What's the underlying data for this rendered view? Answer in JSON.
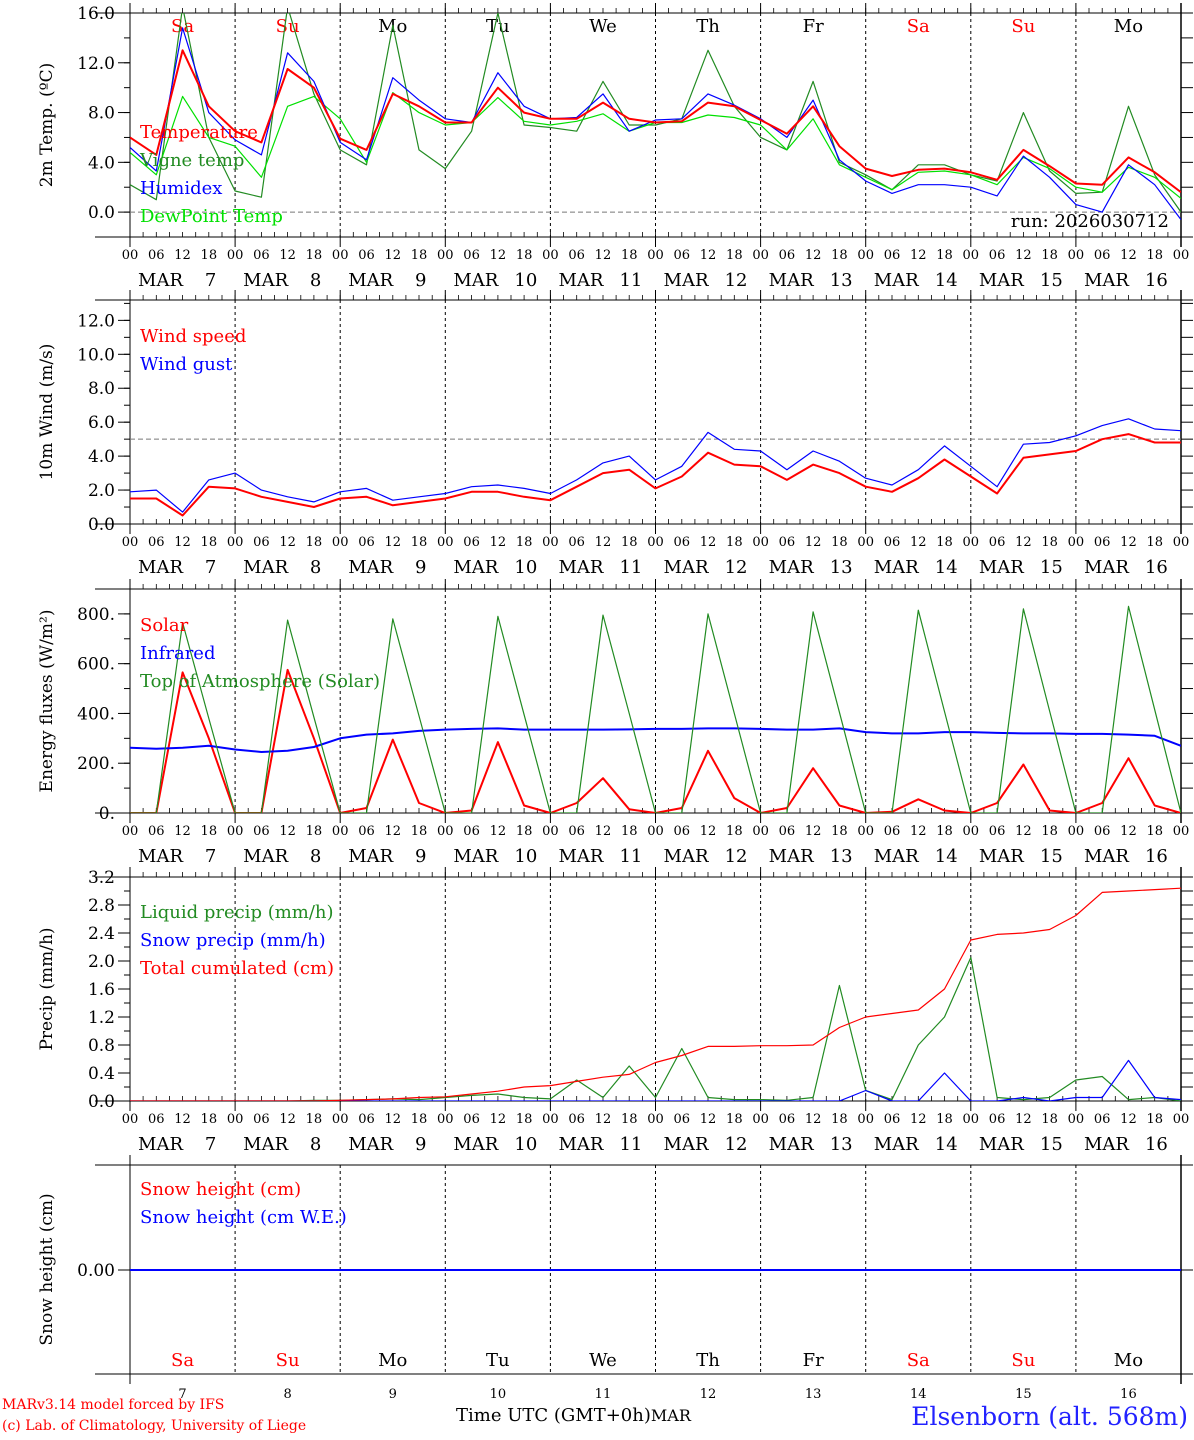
{
  "colors": {
    "red": "#ff0000",
    "green": "#228b22",
    "blue": "#0000ff",
    "lightgreen": "#00e000",
    "black": "#000000",
    "weekend": "#ff0000"
  },
  "x_axis": {
    "hour_ticks": [
      "00",
      "06",
      "12",
      "18"
    ],
    "final_tick": "00",
    "month": "MAR",
    "days": [
      "7",
      "8",
      "9",
      "10",
      "11",
      "12",
      "13",
      "14",
      "15",
      "16"
    ],
    "weekdays": [
      "Sa",
      "Su",
      "Mo",
      "Tu",
      "We",
      "Th",
      "Fr",
      "Sa",
      "Su",
      "Mo"
    ],
    "weekend_flags": [
      true,
      true,
      false,
      false,
      false,
      false,
      false,
      true,
      true,
      false
    ],
    "title": "Time UTC (GMT+0h)",
    "title_suffix": "MAR"
  },
  "footer": {
    "credit_line1": "MARv3.14 model forced by IFS",
    "credit_line2": "(c) Lab. of Climatology, University of Liege",
    "station": "Elsenborn (alt. 568m)"
  },
  "chart_data": [
    {
      "type": "line",
      "title": "",
      "ylabel": "2m Temp. (ºC)",
      "xlabel": "",
      "ylim": [
        -2.0,
        16.0
      ],
      "yticks": [
        "16.0",
        "12.0",
        "8.0",
        "4.0",
        "0.0"
      ],
      "ytick_values": [
        16,
        12,
        8,
        4,
        0
      ],
      "reference_line": 0.0,
      "annotation": "run: 2026030712",
      "x_hours_step": 6,
      "series": [
        {
          "name": "Temperature",
          "color": "#ff0000",
          "values": [
            6.0,
            4.6,
            13.0,
            8.5,
            6.5,
            5.6,
            11.5,
            10.0,
            5.9,
            5.0,
            9.5,
            8.5,
            7.2,
            7.2,
            10.0,
            8.0,
            7.5,
            7.5,
            8.8,
            7.5,
            7.2,
            7.3,
            8.8,
            8.5,
            7.4,
            6.3,
            8.5,
            5.3,
            3.5,
            2.9,
            3.4,
            3.5,
            3.2,
            2.6,
            5.0,
            3.7,
            2.3,
            2.2,
            4.4,
            3.2,
            1.6
          ]
        },
        {
          "name": "Vigne temp",
          "color": "#228b22",
          "values": [
            2.2,
            1.0,
            16.5,
            6.0,
            1.7,
            1.2,
            16.5,
            9.5,
            5.0,
            3.8,
            15.0,
            5.0,
            3.5,
            6.5,
            16.0,
            7.0,
            6.8,
            6.5,
            10.5,
            7.0,
            7.0,
            7.5,
            13.0,
            8.5,
            6.0,
            5.0,
            10.5,
            4.0,
            3.0,
            1.8,
            3.8,
            3.8,
            3.0,
            2.5,
            8.0,
            3.3,
            1.5,
            1.6,
            8.5,
            3.0,
            0.0
          ]
        },
        {
          "name": "Humidex",
          "color": "#0000ff",
          "values": [
            5.2,
            3.3,
            14.8,
            8.0,
            5.8,
            4.6,
            12.8,
            10.5,
            5.6,
            4.2,
            10.8,
            9.0,
            7.5,
            7.2,
            11.2,
            8.5,
            7.5,
            7.6,
            9.5,
            6.5,
            7.4,
            7.5,
            9.5,
            8.6,
            7.5,
            6.0,
            9.0,
            4.2,
            2.5,
            1.5,
            2.2,
            2.2,
            2.0,
            1.3,
            4.5,
            2.8,
            0.6,
            0.0,
            3.8,
            2.2,
            -0.6
          ]
        },
        {
          "name": "DewPoint Temp",
          "color": "#00e000",
          "values": [
            4.8,
            3.0,
            9.3,
            6.0,
            5.3,
            2.8,
            8.5,
            9.3,
            7.5,
            4.0,
            9.6,
            8.0,
            7.0,
            7.2,
            9.2,
            7.3,
            7.0,
            7.3,
            7.9,
            6.5,
            7.2,
            7.2,
            7.8,
            7.6,
            7.0,
            5.0,
            7.5,
            3.8,
            2.8,
            1.8,
            3.2,
            3.3,
            3.0,
            2.2,
            4.4,
            3.5,
            2.0,
            1.6,
            3.6,
            2.8,
            1.1
          ]
        }
      ]
    },
    {
      "type": "line",
      "title": "",
      "ylabel": "10m Wind (m/s)",
      "xlabel": "",
      "ylim": [
        0.0,
        13.2
      ],
      "yticks": [
        "12.0",
        "10.0",
        "8.0",
        "6.0",
        "4.0",
        "2.0",
        "0.0"
      ],
      "ytick_values": [
        12,
        10,
        8,
        6,
        4,
        2,
        0
      ],
      "reference_line": 5.0,
      "x_hours_step": 6,
      "series": [
        {
          "name": "Wind speed",
          "color": "#ff0000",
          "values": [
            1.5,
            1.5,
            0.5,
            2.2,
            2.1,
            1.6,
            1.3,
            1.0,
            1.5,
            1.6,
            1.1,
            1.3,
            1.5,
            1.9,
            1.9,
            1.6,
            1.4,
            2.2,
            3.0,
            3.2,
            2.1,
            2.8,
            4.2,
            3.5,
            3.4,
            2.6,
            3.5,
            3.0,
            2.2,
            1.9,
            2.7,
            3.8,
            2.8,
            1.8,
            3.9,
            4.1,
            4.3,
            5.0,
            5.3,
            4.8,
            4.8
          ]
        },
        {
          "name": "Wind gust",
          "color": "#0000ff",
          "values": [
            1.9,
            2.0,
            0.7,
            2.6,
            3.0,
            2.0,
            1.6,
            1.3,
            1.9,
            2.1,
            1.4,
            1.6,
            1.8,
            2.2,
            2.3,
            2.1,
            1.8,
            2.6,
            3.6,
            4.0,
            2.6,
            3.4,
            5.4,
            4.4,
            4.3,
            3.2,
            4.3,
            3.7,
            2.7,
            2.3,
            3.2,
            4.6,
            3.4,
            2.2,
            4.7,
            4.8,
            5.2,
            5.8,
            6.2,
            5.6,
            5.5
          ]
        }
      ]
    },
    {
      "type": "line",
      "title": "",
      "ylabel": "Energy fluxes (W/m²)",
      "xlabel": "",
      "ylim": [
        0,
        900
      ],
      "yticks": [
        "800.",
        "600.",
        "400.",
        "200.",
        "0."
      ],
      "ytick_values": [
        800,
        600,
        400,
        200,
        0
      ],
      "x_hours_step": 6,
      "series": [
        {
          "name": "Solar",
          "color": "#ff0000",
          "values": [
            0,
            0,
            565,
            300,
            0,
            0,
            575,
            300,
            0,
            20,
            295,
            40,
            0,
            10,
            285,
            30,
            0,
            40,
            140,
            15,
            0,
            20,
            250,
            60,
            0,
            20,
            180,
            30,
            0,
            5,
            55,
            10,
            0,
            40,
            195,
            10,
            0,
            40,
            220,
            30,
            0
          ]
        },
        {
          "name": "Infrared",
          "color": "#0000ff",
          "values": [
            262,
            258,
            262,
            270,
            255,
            245,
            250,
            265,
            300,
            315,
            320,
            330,
            335,
            338,
            340,
            335,
            335,
            335,
            335,
            336,
            338,
            338,
            340,
            340,
            338,
            335,
            335,
            340,
            325,
            320,
            320,
            325,
            325,
            322,
            320,
            320,
            318,
            318,
            315,
            310,
            270
          ]
        },
        {
          "name": "Top of Atmosphere (Solar)",
          "color": "#228b22",
          "values": [
            0,
            0,
            765,
            380,
            0,
            0,
            775,
            385,
            0,
            0,
            780,
            390,
            0,
            0,
            790,
            395,
            0,
            0,
            795,
            400,
            0,
            0,
            800,
            400,
            0,
            0,
            808,
            405,
            0,
            0,
            815,
            408,
            0,
            0,
            820,
            410,
            0,
            0,
            830,
            415,
            0
          ]
        }
      ]
    },
    {
      "type": "line",
      "title": "",
      "ylabel": "Precip (mm/h)",
      "xlabel": "",
      "ylim": [
        0.0,
        3.2
      ],
      "yticks": [
        "3.2",
        "2.8",
        "2.4",
        "2.0",
        "1.6",
        "1.2",
        "0.8",
        "0.4",
        "0.0"
      ],
      "ytick_values": [
        3.2,
        2.8,
        2.4,
        2.0,
        1.6,
        1.2,
        0.8,
        0.4,
        0.0
      ],
      "x_hours_step": 6,
      "series": [
        {
          "name": "Liquid precip (mm/h)",
          "color": "#228b22",
          "values": [
            0,
            0,
            0,
            0,
            0,
            0,
            0,
            0.01,
            0.01,
            0.02,
            0.03,
            0.02,
            0.05,
            0.08,
            0.1,
            0.05,
            0.03,
            0.3,
            0.05,
            0.5,
            0.05,
            0.75,
            0.05,
            0.02,
            0.02,
            0.01,
            0.05,
            1.65,
            0.15,
            0.02,
            0.8,
            1.2,
            2.05,
            0.05,
            0.02,
            0.05,
            0.3,
            0.35,
            0.02,
            0.05,
            0
          ]
        },
        {
          "name": "Snow precip (mm/h)",
          "color": "#0000ff",
          "values": [
            0,
            0,
            0,
            0,
            0,
            0,
            0,
            0,
            0,
            0,
            0,
            0,
            0,
            0,
            0,
            0,
            0,
            0,
            0,
            0,
            0,
            0,
            0,
            0,
            0,
            0,
            0,
            0,
            0.15,
            0,
            0,
            0.4,
            0,
            0,
            0.05,
            0,
            0.05,
            0.05,
            0.58,
            0.05,
            0.02
          ]
        },
        {
          "name": "Total cumulated (cm)",
          "color": "#ff0000",
          "values": [
            0,
            0,
            0,
            0,
            0,
            0,
            0,
            0,
            0.01,
            0.02,
            0.03,
            0.05,
            0.06,
            0.1,
            0.14,
            0.2,
            0.22,
            0.28,
            0.34,
            0.38,
            0.55,
            0.65,
            0.78,
            0.78,
            0.79,
            0.79,
            0.8,
            1.05,
            1.2,
            1.25,
            1.3,
            1.6,
            2.3,
            2.38,
            2.4,
            2.45,
            2.65,
            2.98,
            3.0,
            3.02,
            3.04
          ]
        }
      ]
    },
    {
      "type": "line",
      "title": "",
      "ylabel": "Snow height (cm)",
      "xlabel": "",
      "ylim": [
        -1,
        1
      ],
      "yticks": [
        "0.00"
      ],
      "ytick_values": [
        0
      ],
      "x_hours_step": 6,
      "series": [
        {
          "name": "Snow height (cm)",
          "color": "#ff0000",
          "values": [
            0,
            0,
            0,
            0,
            0,
            0,
            0,
            0,
            0,
            0,
            0,
            0,
            0,
            0,
            0,
            0,
            0,
            0,
            0,
            0,
            0,
            0,
            0,
            0,
            0,
            0,
            0,
            0,
            0,
            0,
            0,
            0,
            0,
            0,
            0,
            0,
            0,
            0,
            0,
            0,
            0
          ]
        },
        {
          "name": "Snow height (cm W.E.)",
          "color": "#0000ff",
          "values": [
            0,
            0,
            0,
            0,
            0,
            0,
            0,
            0,
            0,
            0,
            0,
            0,
            0,
            0,
            0,
            0,
            0,
            0,
            0,
            0,
            0,
            0,
            0,
            0,
            0,
            0,
            0,
            0,
            0,
            0,
            0,
            0,
            0,
            0,
            0,
            0,
            0,
            0,
            0,
            0,
            0
          ]
        }
      ]
    }
  ]
}
